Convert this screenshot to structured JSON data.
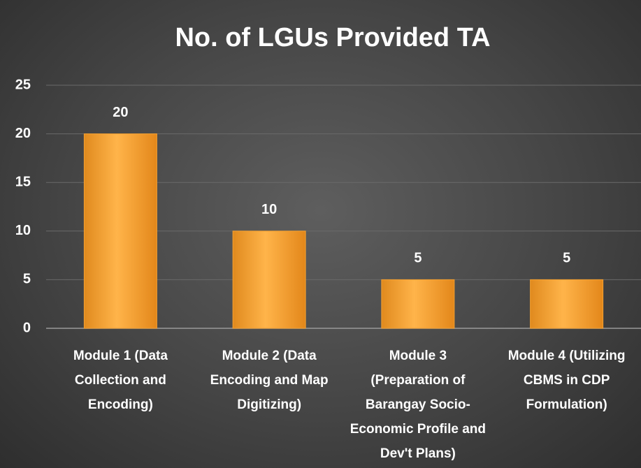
{
  "chart_data": {
    "type": "bar",
    "title": "No. of LGUs Provided TA",
    "categories": [
      "Module 1 (Data Collection and Encoding)",
      "Module 2 (Data Encoding and Map Digitizing)",
      "Module 3 (Preparation of Barangay Socio-Economic Profile and Dev't Plans)",
      "Module 4 (Utilizing CBMS in CDP Formulation)"
    ],
    "values": [
      20,
      10,
      5,
      5
    ],
    "color": "#f5a030",
    "ylim": [
      0,
      25
    ],
    "yticks": [
      0,
      5,
      10,
      15,
      20,
      25
    ],
    "grid": true
  }
}
